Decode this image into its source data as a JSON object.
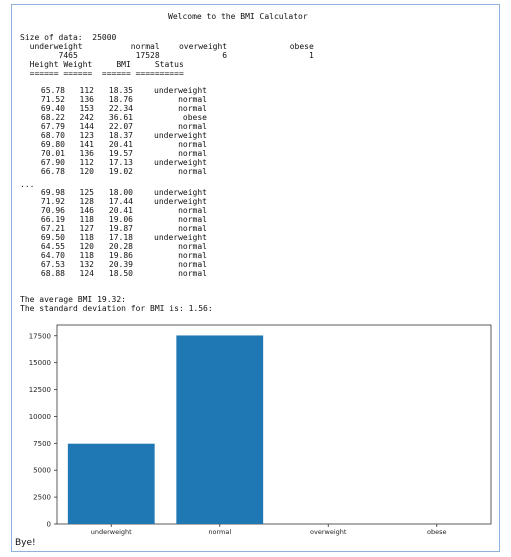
{
  "header": {
    "title": "Welcome to the BMI Calculator"
  },
  "summary": {
    "size_line": "Size of data:  25000",
    "cat_header": "  underweight          normal    overweight             obese",
    "cat_values": "        7465            17528             6                 1",
    "table_header": "  Height Weight     BMI     Status",
    "table_rule": "  ====== ======  ====== =========="
  },
  "rows_top": [
    [
      "65.78",
      "112",
      "18.35",
      "underweight"
    ],
    [
      "71.52",
      "136",
      "18.76",
      "normal"
    ],
    [
      "69.40",
      "153",
      "22.34",
      "normal"
    ],
    [
      "68.22",
      "242",
      "36.61",
      "obese"
    ],
    [
      "67.79",
      "144",
      "22.07",
      "normal"
    ],
    [
      "68.70",
      "123",
      "18.37",
      "underweight"
    ],
    [
      "69.80",
      "141",
      "20.41",
      "normal"
    ],
    [
      "70.01",
      "136",
      "19.57",
      "normal"
    ],
    [
      "67.90",
      "112",
      "17.13",
      "underweight"
    ],
    [
      "66.78",
      "120",
      "19.02",
      "normal"
    ]
  ],
  "ellipsis": "...",
  "rows_bottom": [
    [
      "69.98",
      "125",
      "18.00",
      "underweight"
    ],
    [
      "71.92",
      "128",
      "17.44",
      "underweight"
    ],
    [
      "70.96",
      "146",
      "20.41",
      "normal"
    ],
    [
      "66.19",
      "118",
      "19.06",
      "normal"
    ],
    [
      "67.21",
      "127",
      "19.87",
      "normal"
    ],
    [
      "69.50",
      "118",
      "17.18",
      "underweight"
    ],
    [
      "64.55",
      "120",
      "20.28",
      "normal"
    ],
    [
      "64.70",
      "118",
      "19.86",
      "normal"
    ],
    [
      "67.53",
      "132",
      "20.39",
      "normal"
    ],
    [
      "68.88",
      "124",
      "18.50",
      "normal"
    ]
  ],
  "stats": {
    "average": "The average BMI 19.32:",
    "stddev": "The standard deviation for BMI is: 1.56:"
  },
  "footer": {
    "bye": "Bye!"
  },
  "chart_data": {
    "type": "bar",
    "categories": [
      "underweight",
      "normal",
      "overweight",
      "obese"
    ],
    "values": [
      7465,
      17528,
      6,
      1
    ],
    "ylim": [
      0,
      18500
    ],
    "yticks": [
      0,
      2500,
      5000,
      7500,
      10000,
      12500,
      15000,
      17500
    ],
    "xlabel": "",
    "ylabel": "",
    "color": "#1f77b4",
    "grid": false
  }
}
